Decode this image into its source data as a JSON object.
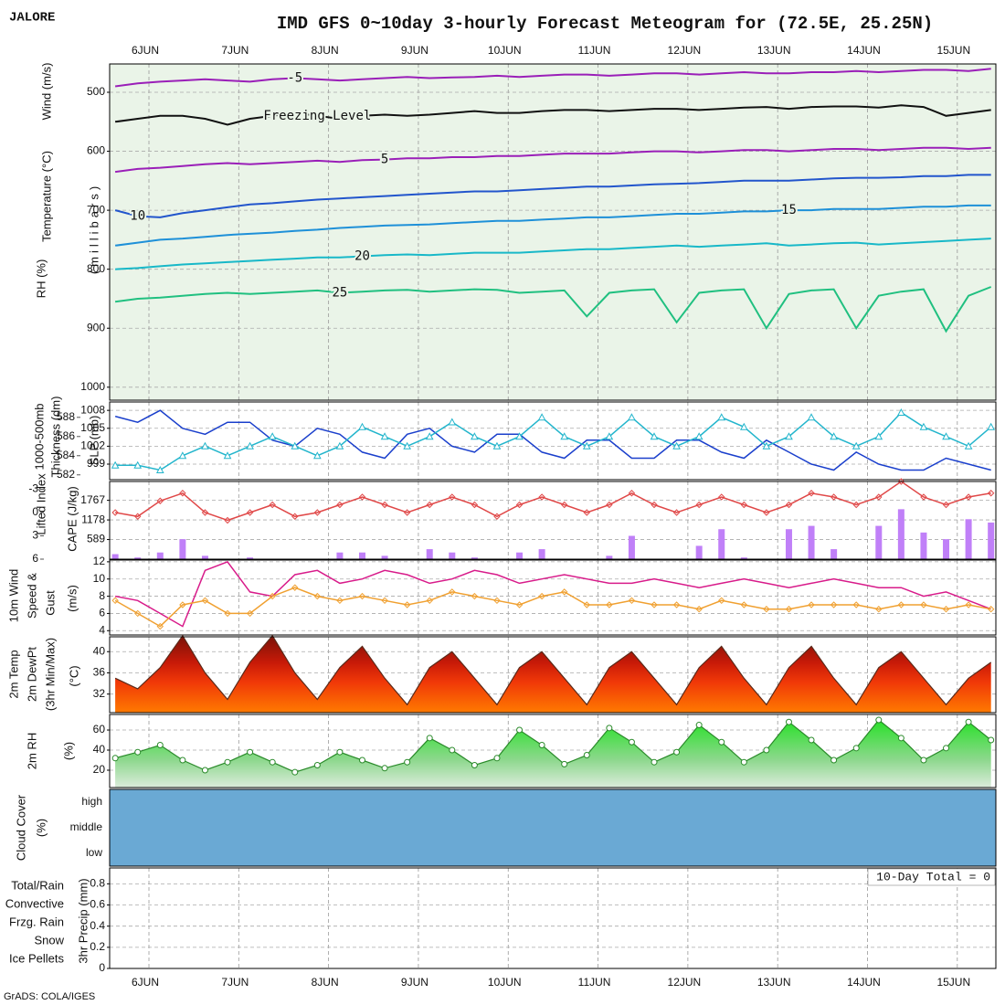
{
  "chart_data": {
    "type": "meteogram",
    "title": "IMD GFS 0~10day 3-hourly Forecast Meteogram for (72.5E, 25.25N)",
    "location": "JALORE",
    "footer": "GrADS: COLA/IGES",
    "xlim": [
      -10.5,
      226.3
    ],
    "xticks": [
      {
        "value": 0,
        "label": "6JUN"
      },
      {
        "value": 24,
        "label": "7JUN"
      },
      {
        "value": 48,
        "label": "8JUN"
      },
      {
        "value": 72,
        "label": "9JUN"
      },
      {
        "value": 96,
        "label": "10JUN"
      },
      {
        "value": 120,
        "label": "11JUN"
      },
      {
        "value": 144,
        "label": "12JUN"
      },
      {
        "value": 168,
        "label": "13JUN"
      },
      {
        "value": 192,
        "label": "14JUN"
      },
      {
        "value": 216,
        "label": "15JUN"
      }
    ],
    "x": [
      -9,
      -3,
      3,
      9,
      15,
      21,
      27,
      33,
      39,
      45,
      51,
      57,
      63,
      69,
      75,
      81,
      87,
      93,
      99,
      105,
      111,
      117,
      123,
      129,
      135,
      141,
      147,
      153,
      159,
      165,
      171,
      177,
      183,
      189,
      195,
      201,
      207,
      213,
      219,
      225
    ],
    "panels": [
      {
        "type": "contour",
        "ylim": [
          1022,
          452
        ],
        "yticks": [
          500,
          600,
          700,
          800,
          900,
          1000
        ],
        "grid": true,
        "ylabels": [
          {
            "text": "Wind (m/s)",
            "color": "#222222"
          },
          {
            "text": "Temperature (°C)",
            "color": "#e05050"
          },
          {
            "text": "RH (%)",
            "color": "#22aa22"
          },
          {
            "text": "(millibars)",
            "color": "#222222"
          }
        ],
        "series": [
          {
            "name": "-5",
            "color": "#9a1fb8",
            "type": "line",
            "values": [
              490,
              485,
              482,
              480,
              478,
              480,
              482,
              478,
              476,
              478,
              480,
              478,
              476,
              474,
              476,
              475,
              474,
              472,
              474,
              472,
              470,
              470,
              472,
              470,
              468,
              468,
              470,
              468,
              466,
              468,
              468,
              466,
              466,
              464,
              466,
              464,
              462,
              462,
              464,
              460
            ]
          },
          {
            "name": "Freezing Level",
            "color": "#111111",
            "type": "line",
            "values": [
              550,
              545,
              540,
              540,
              545,
              555,
              545,
              540,
              535,
              540,
              545,
              540,
              538,
              540,
              538,
              535,
              532,
              535,
              535,
              532,
              530,
              530,
              532,
              530,
              528,
              528,
              530,
              528,
              526,
              525,
              528,
              525,
              524,
              524,
              526,
              522,
              525,
              540,
              535,
              530
            ]
          },
          {
            "name": "5",
            "color": "#9a1fb8",
            "type": "line",
            "values": [
              635,
              630,
              628,
              625,
              622,
              620,
              622,
              620,
              618,
              616,
              618,
              615,
              614,
              612,
              612,
              610,
              610,
              608,
              608,
              606,
              604,
              604,
              604,
              602,
              600,
              600,
              602,
              600,
              598,
              598,
              600,
              598,
              596,
              596,
              598,
              596,
              594,
              594,
              596,
              594
            ]
          },
          {
            "name": "10",
            "color": "#2255cc",
            "type": "line",
            "values": [
              700,
              710,
              712,
              705,
              700,
              695,
              690,
              688,
              685,
              682,
              680,
              678,
              676,
              674,
              672,
              670,
              668,
              668,
              666,
              664,
              662,
              660,
              660,
              658,
              656,
              655,
              654,
              652,
              650,
              650,
              650,
              648,
              646,
              645,
              645,
              644,
              642,
              642,
              640,
              640
            ]
          },
          {
            "name": "15",
            "color": "#1e90d8",
            "type": "line",
            "values": [
              760,
              755,
              750,
              748,
              745,
              742,
              740,
              738,
              735,
              733,
              730,
              728,
              726,
              725,
              724,
              722,
              720,
              718,
              718,
              716,
              714,
              712,
              712,
              710,
              708,
              706,
              706,
              704,
              702,
              702,
              700,
              700,
              698,
              698,
              698,
              696,
              694,
              694,
              692,
              692
            ]
          },
          {
            "name": "20",
            "color": "#18b8c8",
            "type": "line",
            "values": [
              800,
              798,
              795,
              792,
              790,
              788,
              786,
              784,
              782,
              780,
              780,
              778,
              776,
              775,
              776,
              774,
              772,
              772,
              772,
              770,
              768,
              766,
              766,
              764,
              762,
              760,
              762,
              760,
              758,
              756,
              760,
              758,
              756,
              755,
              758,
              756,
              754,
              752,
              750,
              748
            ]
          },
          {
            "name": "25",
            "color": "#20c080",
            "type": "line",
            "values": [
              855,
              850,
              848,
              845,
              842,
              840,
              842,
              840,
              838,
              836,
              840,
              838,
              836,
              835,
              838,
              836,
              834,
              835,
              840,
              838,
              836,
              880,
              840,
              836,
              834,
              890,
              840,
              836,
              834,
              900,
              842,
              836,
              834,
              900,
              845,
              838,
              834,
              905,
              845,
              830
            ]
          }
        ]
      },
      {
        "type": "line",
        "ylim": [
          996.4,
          1009.4
        ],
        "yticks": [
          999,
          1002,
          1005,
          1008
        ],
        "y2lim": [
          581.5,
          589.6
        ],
        "y2ticks": [
          582,
          584,
          586,
          588
        ],
        "grid": true,
        "ylabels": [
          {
            "text": "1000-500mb",
            "color": "#22aacc"
          },
          {
            "text": "Thickness (dm)",
            "color": "#22aacc"
          },
          {
            "text": "SLP (mb)",
            "color": "#2244cc"
          }
        ],
        "series": [
          {
            "type": "line",
            "color": "#1a3fcc",
            "values": [
              1007,
              1006,
              1008,
              1005,
              1004,
              1006,
              1006,
              1003,
              1002,
              1005,
              1004,
              1001,
              1000,
              1004,
              1005,
              1002,
              1001,
              1004,
              1004,
              1001,
              1000,
              1003,
              1003,
              1000,
              1000,
              1003,
              1003,
              1001,
              1000,
              1003,
              1001,
              999,
              998,
              1001,
              999,
              998,
              998,
              1000,
              999,
              998
            ]
          },
          {
            "type": "line",
            "color": "#22b5cc",
            "axis": "y2",
            "marker": "triangle",
            "values": [
              583,
              583,
              582.5,
              584,
              585,
              584,
              585,
              586,
              585,
              584,
              585,
              587,
              586,
              585,
              586,
              587.5,
              586,
              585,
              586,
              588,
              586,
              585,
              586,
              588,
              586,
              585,
              586,
              588,
              587,
              585,
              586,
              588,
              586,
              585,
              586,
              588.5,
              587,
              586,
              585,
              587
            ]
          }
        ]
      },
      {
        "type": "bar",
        "ylim": [
          0,
          2333
        ],
        "yticks": [
          589,
          1178,
          1767
        ],
        "y2lim": [
          6,
          -4
        ],
        "y2ticks": [
          -3,
          0,
          3,
          6
        ],
        "grid": true,
        "ylabels": [
          {
            "text": "Lifted Index",
            "color": "#e04040"
          },
          {
            "text": "CAPE (J/kg)",
            "color": "#b070f0"
          }
        ],
        "series": [
          {
            "type": "bar",
            "color": "#c080f8",
            "values": [
              150,
              50,
              200,
              600,
              100,
              0,
              50,
              0,
              0,
              0,
              200,
              200,
              100,
              0,
              300,
              200,
              50,
              0,
              200,
              300,
              0,
              0,
              100,
              700,
              0,
              0,
              400,
              900,
              50,
              0,
              900,
              1000,
              300,
              0,
              1000,
              1500,
              800,
              600,
              1200,
              1100
            ]
          },
          {
            "type": "line",
            "color": "#e04848",
            "axis": "y2",
            "marker": "diamond",
            "values": [
              0,
              0.5,
              -1.5,
              -2.5,
              0,
              1,
              0,
              -1,
              0.5,
              0,
              -1,
              -2,
              -1,
              0,
              -1,
              -2,
              -1,
              0.5,
              -1,
              -2,
              -1,
              0,
              -1,
              -2.5,
              -1,
              0,
              -1,
              -2,
              -1,
              0,
              -1,
              -2.5,
              -2,
              -1,
              -2,
              -4,
              -2,
              -1,
              -2,
              -2.5
            ]
          }
        ]
      },
      {
        "type": "line",
        "ylim": [
          3.5,
          12.2
        ],
        "yticks": [
          4,
          6,
          8,
          10,
          12
        ],
        "grid": true,
        "ylabels": [
          {
            "text": "10m Wind",
            "color": "#f0a030"
          },
          {
            "text": "Speed &",
            "color": "#f08a10"
          },
          {
            "text": "Gust",
            "color": "#d0208a"
          },
          {
            "text": "(m/s)",
            "color": "#222222"
          }
        ],
        "series": [
          {
            "type": "line",
            "color": "#d81b8a",
            "values": [
              8,
              7.5,
              6,
              4.5,
              11,
              12,
              8.5,
              8,
              10.5,
              11,
              9.5,
              10,
              11,
              10.5,
              9.5,
              10,
              11,
              10.5,
              9.5,
              10,
              10.5,
              10,
              9.5,
              9.5,
              10,
              9.5,
              9,
              9.5,
              10,
              9.5,
              9,
              9.5,
              10,
              9.5,
              9,
              9,
              8,
              8.5,
              7.5,
              6.5
            ]
          },
          {
            "type": "line",
            "color": "#f0a030",
            "marker": "diamond",
            "values": [
              7.5,
              6,
              4.5,
              7,
              7.5,
              6,
              6,
              8,
              9,
              8,
              7.5,
              8,
              7.5,
              7,
              7.5,
              8.5,
              8,
              7.5,
              7,
              8,
              8.5,
              7,
              7,
              7.5,
              7,
              7,
              6.5,
              7.5,
              7,
              6.5,
              6.5,
              7,
              7,
              7,
              6.5,
              7,
              7,
              6.5,
              7,
              6.5
            ]
          }
        ]
      },
      {
        "type": "area",
        "ylim": [
          28.5,
          42.8
        ],
        "yticks": [
          32,
          36,
          40
        ],
        "grid": true,
        "ylabels": [
          {
            "text": "2m Temp",
            "color": "#222222"
          },
          {
            "text": "2m DewPt",
            "color": "#222222"
          },
          {
            "text": "(3hr Min/Max)",
            "color": "#222222"
          },
          {
            "text": "(°C)",
            "color": "#222222"
          }
        ],
        "series": [
          {
            "type": "area",
            "color": "#5a2a1a",
            "values": [
              35,
              33,
              37,
              43,
              36,
              31,
              38,
              43,
              36,
              31,
              37,
              41,
              35,
              30,
              37,
              40,
              35,
              30,
              37,
              40,
              35,
              30,
              37,
              40,
              35,
              30,
              37,
              41,
              35,
              30,
              37,
              41,
              35,
              30,
              37,
              40,
              35,
              30,
              35,
              38
            ]
          }
        ]
      },
      {
        "type": "area",
        "ylim": [
          2.7,
          75.5
        ],
        "yticks": [
          20,
          40,
          60
        ],
        "grid": true,
        "ylabels": [
          {
            "text": "2m RH",
            "color": "#22aa22"
          },
          {
            "text": "(%)",
            "color": "#222222"
          }
        ],
        "series": [
          {
            "type": "area",
            "color": "#2a8a2a",
            "marker": "circle",
            "values": [
              32,
              38,
              45,
              30,
              20,
              28,
              38,
              28,
              18,
              25,
              38,
              30,
              22,
              28,
              52,
              40,
              25,
              32,
              60,
              45,
              26,
              35,
              62,
              48,
              28,
              38,
              65,
              48,
              28,
              40,
              68,
              50,
              30,
              42,
              70,
              52,
              30,
              42,
              68,
              50
            ]
          }
        ]
      },
      {
        "type": "cloud",
        "categories": [
          "high",
          "middle",
          "low"
        ],
        "ylabels": [
          {
            "text": "Cloud Cover",
            "color": "#44aadd"
          },
          {
            "text": "(%)",
            "color": "#222222"
          }
        ],
        "series": []
      },
      {
        "type": "precip",
        "ylim": [
          0,
          0.95
        ],
        "yticks": [
          0,
          0.2,
          0.4,
          0.6,
          0.8
        ],
        "grid": true,
        "annotation": "10-Day Total = 0",
        "legend": [
          {
            "name": "Total/Rain",
            "color": "#22aa22"
          },
          {
            "name": "Convective",
            "color": "#e03030"
          },
          {
            "name": "Frzg. Rain",
            "color": "#f08a10"
          },
          {
            "name": "Snow",
            "color": "#4444cc"
          },
          {
            "name": "Ice Pellets",
            "color": "#22aacc"
          }
        ],
        "ylabels": [
          {
            "text": "3hr Precip (mm)",
            "color": "#222222"
          }
        ],
        "series": []
      }
    ]
  }
}
